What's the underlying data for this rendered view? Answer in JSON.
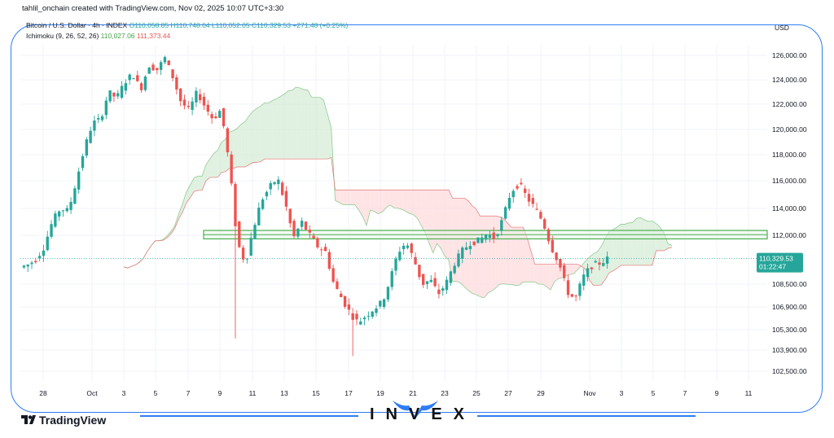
{
  "header": {
    "creator": "tahlil_onchain created with TradingView.com, Nov 02, 2025 10:07 UTC+3:30",
    "symbol": "Bitcoin / U.S. Dollar · 4h · INDEX",
    "ohlc": "O110,058.85 H110,748.04 L110,052.05 C110,329.53 +271.48 (+0.25%)",
    "indicator_name": "Ichimoku (9, 26, 52, 26)",
    "indicator_val1": "110,027.06",
    "indicator_val2": "111,373.44",
    "currency": "USD"
  },
  "branding": {
    "tv_logo_text": "TradingView",
    "watermark": "INVEX",
    "accent": "#2f7df6"
  },
  "colors": {
    "up": "#26a69a",
    "down": "#ef5350",
    "kumo_bull": "#c8e6c9",
    "kumo_bear": "#ffcdd2",
    "zone": "#4caf50"
  },
  "chart_data": {
    "type": "candlestick",
    "title": "Bitcoin / U.S. Dollar · 4h · INDEX",
    "y_ticks": [
      "126,000.00",
      "124,000.00",
      "122,000.00",
      "120,000.00",
      "118,000.00",
      "116,000.00",
      "114,000.00",
      "112,000.00",
      "108,500.00",
      "106,900.00",
      "105,300.00",
      "103,900.00",
      "102,500.00"
    ],
    "x_ticks": [
      "28",
      "Oct",
      "3",
      "5",
      "7",
      "9",
      "11",
      "13",
      "15",
      "17",
      "19",
      "21",
      "23",
      "25",
      "27",
      "29",
      "Nov",
      "3",
      "5",
      "7",
      "9",
      "11"
    ],
    "last_price": "110,329.53",
    "countdown": "01:22:47",
    "zone": {
      "low": 111800,
      "high": 112300
    },
    "price_path": [
      [
        0,
        109700
      ],
      [
        2,
        109900
      ],
      [
        4,
        110300
      ],
      [
        6,
        111200
      ],
      [
        8,
        113000
      ],
      [
        10,
        114000
      ],
      [
        12,
        113800
      ],
      [
        14,
        116000
      ],
      [
        16,
        118500
      ],
      [
        18,
        120500
      ],
      [
        20,
        120800
      ],
      [
        22,
        123000
      ],
      [
        24,
        122500
      ],
      [
        26,
        123800
      ],
      [
        28,
        124500
      ],
      [
        30,
        123200
      ],
      [
        32,
        125200
      ],
      [
        34,
        124800
      ],
      [
        36,
        125800
      ],
      [
        38,
        124200
      ],
      [
        40,
        122200
      ],
      [
        42,
        121500
      ],
      [
        44,
        123000
      ],
      [
        46,
        121800
      ],
      [
        48,
        120800
      ],
      [
        50,
        121600
      ],
      [
        52,
        117200
      ],
      [
        54,
        111500
      ],
      [
        56,
        110000
      ],
      [
        58,
        112500
      ],
      [
        60,
        114600
      ],
      [
        62,
        115500
      ],
      [
        64,
        116200
      ],
      [
        66,
        114300
      ],
      [
        68,
        111800
      ],
      [
        70,
        113000
      ],
      [
        72,
        112000
      ],
      [
        74,
        111200
      ],
      [
        76,
        110800
      ],
      [
        78,
        108500
      ],
      [
        80,
        107500
      ],
      [
        82,
        106500
      ],
      [
        84,
        105800
      ],
      [
        86,
        106300
      ],
      [
        88,
        106800
      ],
      [
        90,
        107200
      ],
      [
        92,
        108800
      ],
      [
        94,
        110800
      ],
      [
        96,
        111500
      ],
      [
        98,
        110200
      ],
      [
        100,
        108500
      ],
      [
        102,
        108800
      ],
      [
        104,
        107800
      ],
      [
        106,
        108600
      ],
      [
        108,
        110000
      ],
      [
        110,
        110900
      ],
      [
        112,
        111500
      ],
      [
        114,
        111600
      ],
      [
        116,
        112100
      ],
      [
        118,
        111800
      ],
      [
        120,
        113200
      ],
      [
        122,
        115200
      ],
      [
        124,
        115800
      ],
      [
        126,
        114800
      ],
      [
        128,
        114000
      ],
      [
        130,
        113000
      ],
      [
        132,
        111200
      ],
      [
        134,
        110000
      ],
      [
        136,
        108000
      ],
      [
        138,
        107400
      ],
      [
        140,
        109000
      ],
      [
        142,
        109800
      ],
      [
        144,
        110000
      ],
      [
        146,
        110300
      ]
    ],
    "series": [
      {
        "name": "Ichimoku (9, 26, 52, 26)"
      }
    ]
  }
}
